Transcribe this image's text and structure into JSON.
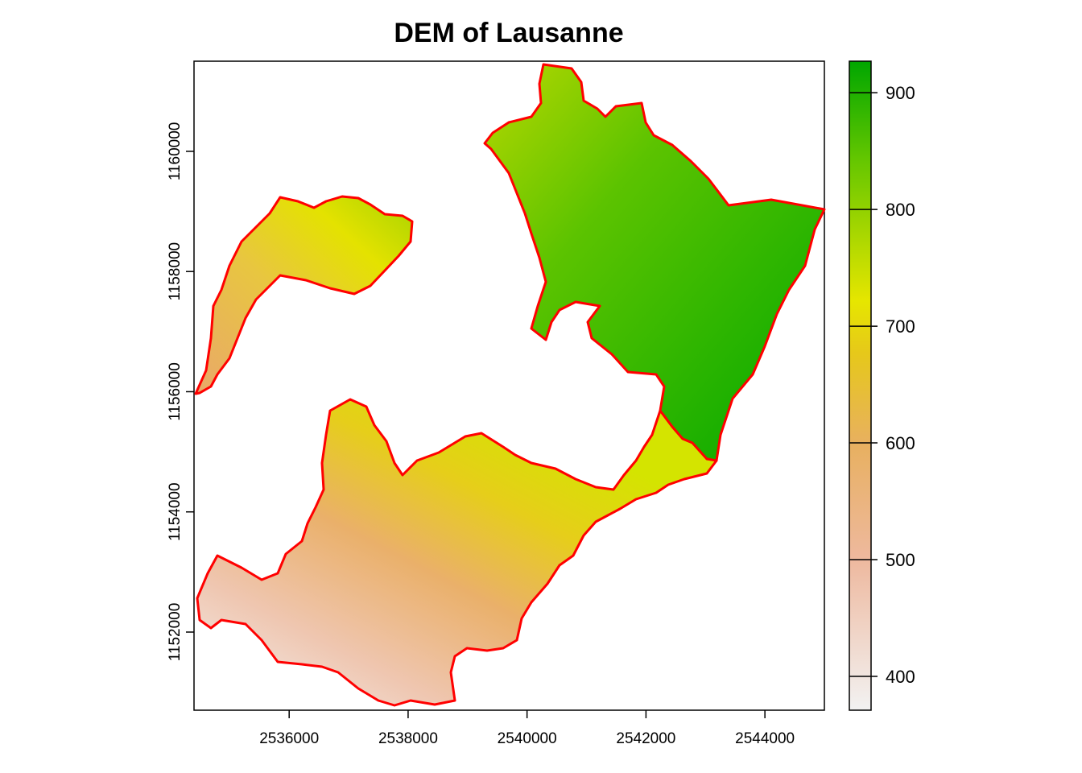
{
  "title": "DEM of Lausanne",
  "map": {
    "x_ticks": [
      "2536000",
      "2538000",
      "2540000",
      "2542000",
      "2544000"
    ],
    "y_ticks": [
      "1152000",
      "1154000",
      "1156000",
      "1158000",
      "1160000"
    ],
    "x_range": [
      2534400,
      2545000
    ],
    "y_range": [
      1150700,
      1161500
    ],
    "boundary_color": "#ff0000"
  },
  "legend": {
    "labels": [
      "400",
      "500",
      "600",
      "700",
      "800",
      "900"
    ],
    "values": [
      400,
      500,
      600,
      700,
      800,
      900
    ],
    "range": [
      371,
      927
    ],
    "colors": [
      "#f2f2f2",
      "#eeb99f",
      "#e8c32e",
      "#e6e600",
      "#63c600",
      "#00a600"
    ]
  }
}
